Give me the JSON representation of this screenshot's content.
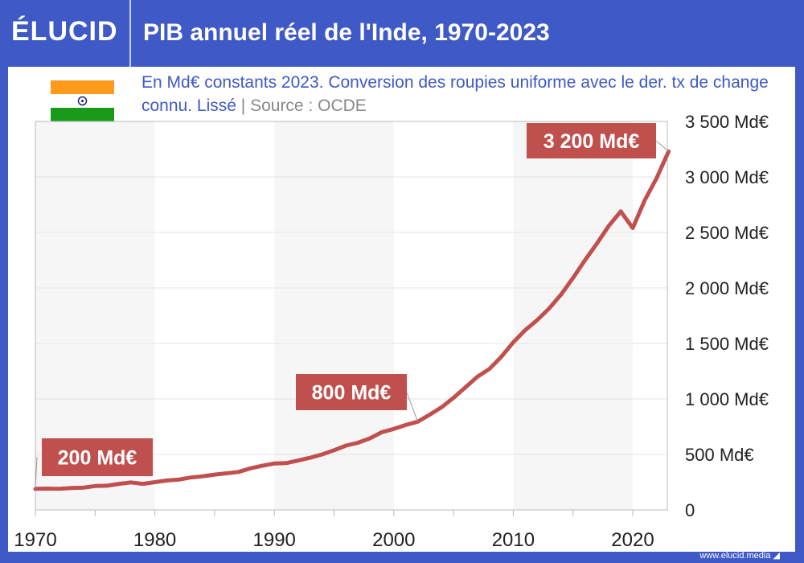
{
  "header": {
    "logo": "ÉLUCID",
    "title": "PIB annuel réel de l'Inde, 1970-2023"
  },
  "subtitle": {
    "text": "En Md€ constants 2023. Conversion des roupies uniforme avec le der. tx de change connu. Lissé",
    "separator": "|",
    "source": "Source : OCDE"
  },
  "footer": {
    "url": "www.elucid.media"
  },
  "colors": {
    "brand": "#3f59c6",
    "line": "#c0504d",
    "band": "#f6f6f6"
  },
  "chart_data": {
    "type": "line",
    "title": "PIB annuel réel de l'Inde, 1970-2023",
    "ylabel": "Md€ constants 2023",
    "xlim": [
      1970,
      2023
    ],
    "ylim": [
      0,
      3500
    ],
    "x_ticks": [
      1970,
      1980,
      1990,
      2000,
      2010,
      2020
    ],
    "y_ticks": [
      {
        "v": 0,
        "label": "0"
      },
      {
        "v": 500,
        "label": "500 Md€"
      },
      {
        "v": 1000,
        "label": "1 000 Md€"
      },
      {
        "v": 1500,
        "label": "1 500 Md€"
      },
      {
        "v": 2000,
        "label": "2 000 Md€"
      },
      {
        "v": 2500,
        "label": "2 500 Md€"
      },
      {
        "v": 3000,
        "label": "3 000 Md€"
      },
      {
        "v": 3500,
        "label": "3 500 Md€"
      }
    ],
    "x": [
      1970,
      1971,
      1972,
      1973,
      1974,
      1975,
      1976,
      1977,
      1978,
      1979,
      1980,
      1981,
      1982,
      1983,
      1984,
      1985,
      1986,
      1987,
      1988,
      1989,
      1990,
      1991,
      1992,
      1993,
      1994,
      1995,
      1996,
      1997,
      1998,
      1999,
      2000,
      2001,
      2002,
      2003,
      2004,
      2005,
      2006,
      2007,
      2008,
      2009,
      2010,
      2011,
      2012,
      2013,
      2014,
      2015,
      2016,
      2017,
      2018,
      2019,
      2020,
      2021,
      2022,
      2023
    ],
    "values": [
      190,
      192,
      190,
      198,
      200,
      215,
      218,
      235,
      248,
      235,
      250,
      265,
      273,
      292,
      303,
      318,
      330,
      342,
      375,
      398,
      418,
      422,
      445,
      470,
      500,
      538,
      580,
      605,
      645,
      700,
      730,
      765,
      795,
      858,
      925,
      1010,
      1105,
      1200,
      1270,
      1380,
      1510,
      1620,
      1710,
      1815,
      1940,
      2090,
      2250,
      2400,
      2560,
      2690,
      2540,
      2790,
      2990,
      3230
    ],
    "annotations": [
      {
        "x": 1970,
        "label": "200 Md€"
      },
      {
        "x": 2002,
        "label": "800 Md€"
      },
      {
        "x": 2023,
        "label": "3 200 Md€"
      }
    ],
    "grid": true
  }
}
